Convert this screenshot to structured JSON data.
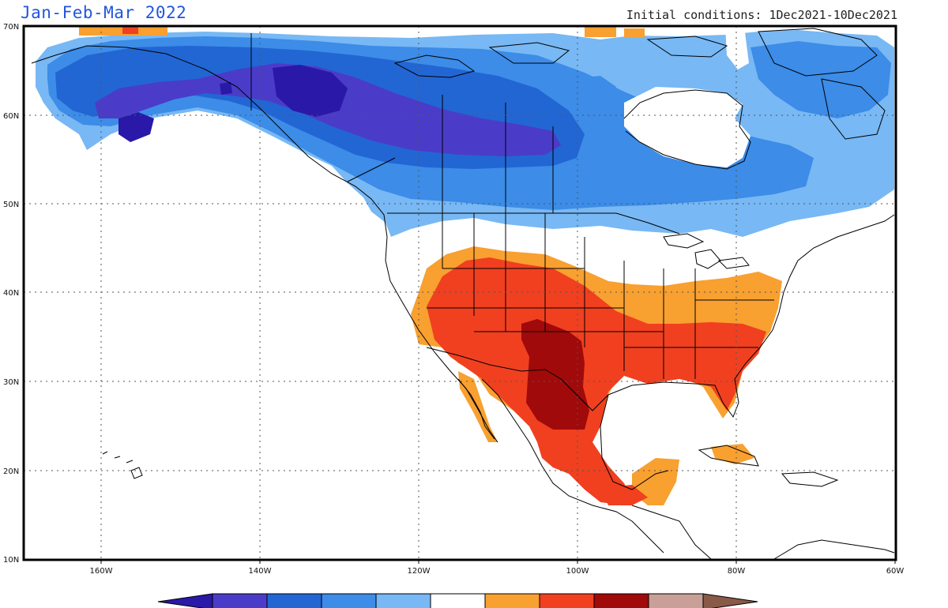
{
  "title": "Jan-Feb-Mar 2022",
  "subtitle": "Initial conditions: 1Dec2021-10Dec2021",
  "lon_labels": [
    "160W",
    "140W",
    "120W",
    "100W",
    "80W",
    "60W"
  ],
  "lat_labels": [
    "70N",
    "60N",
    "50N",
    "40N",
    "30N",
    "20N",
    "10N"
  ],
  "colorbar": {
    "colors": [
      "#2a18a8",
      "#4a3cc8",
      "#2266d4",
      "#3c8ce8",
      "#78b8f4",
      "#ffffff",
      "#f8a030",
      "#f04020",
      "#a00a0a",
      "#c8a098",
      "#8a5a48"
    ]
  }
}
